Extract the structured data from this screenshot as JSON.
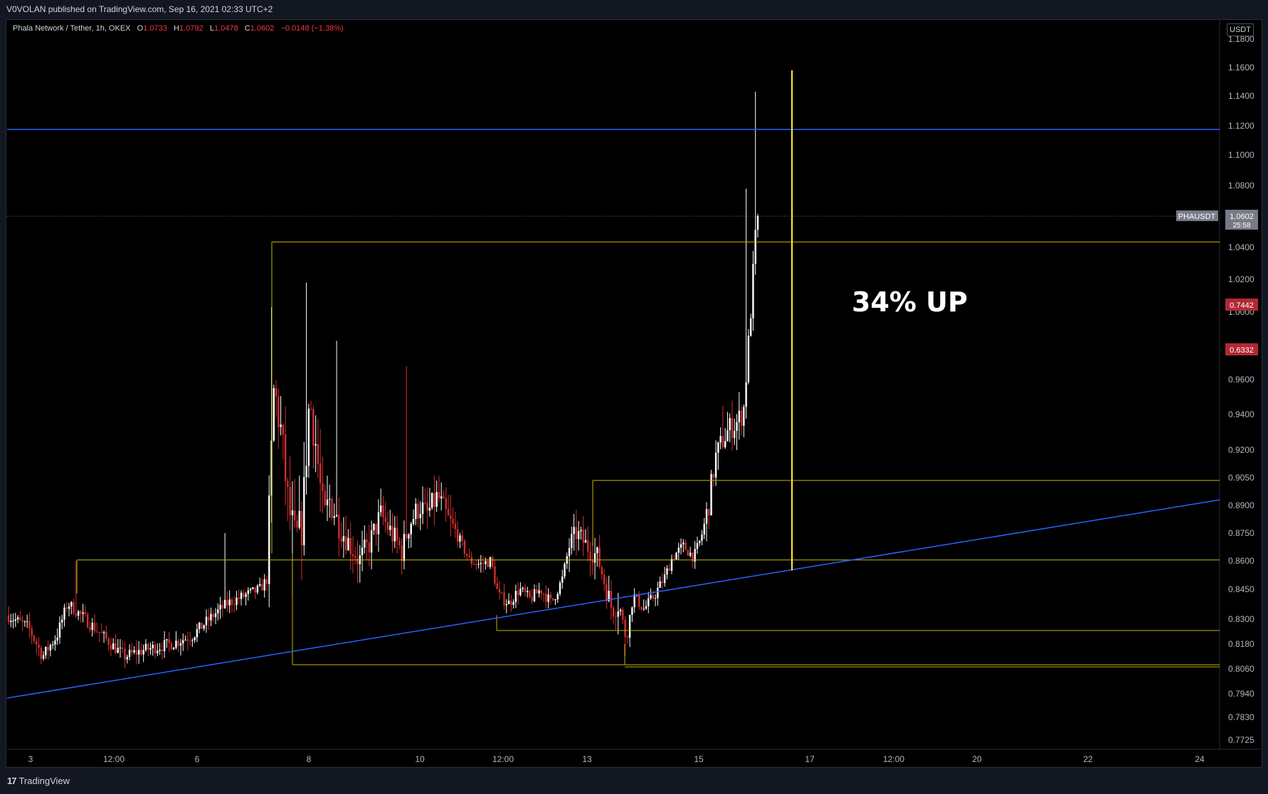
{
  "header": {
    "published_text": "V0VOLAN published on TradingView.com, Sep 16, 2021 02:33 UTC+2"
  },
  "legend": {
    "symbol_text": "Phala Network / Tether, 1h, OKEX",
    "o_label": "O",
    "o_value": "1.0733",
    "h_label": "H",
    "h_value": "1.0792",
    "l_label": "L",
    "l_value": "1.0478",
    "c_label": "C",
    "c_value": "1.0602",
    "change": "−0.0148 (−1.38%)"
  },
  "axis_unit": "USDT",
  "footer": {
    "brand": "TradingView"
  },
  "annotation_text": "34% UP",
  "price_tags": [
    {
      "label": "PHAUSDT",
      "value": "1.0602",
      "sub": "25:58",
      "bg": "#787b86"
    },
    {
      "label": "",
      "value": "0.7442",
      "sub": "",
      "bg": "#b22833"
    },
    {
      "label": "",
      "value": "0.6332",
      "sub": "",
      "bg": "#b22833"
    }
  ],
  "colors": {
    "up": "#ffffff",
    "down": "#d32f2f",
    "level": "#c8b400",
    "trend": "#2962ff",
    "vertical": "#ffeb3b",
    "background": "#000000"
  },
  "chart_data": {
    "type": "candlestick",
    "symbol": "PHAUSDT",
    "timeframe": "1h",
    "y_axis": {
      "ticks": [
        "1.1800",
        "1.1600",
        "1.1400",
        "1.1200",
        "1.1000",
        "1.0800",
        "1.0400",
        "1.0200",
        "1.0000",
        "0.9600",
        "0.9400",
        "0.9200",
        "0.9050",
        "0.8900",
        "0.8750",
        "0.8600",
        "0.8450",
        "0.8300",
        "0.8180",
        "0.8060",
        "0.7940",
        "0.7830",
        "0.7725"
      ],
      "ylim": [
        0.768,
        1.185
      ]
    },
    "x_axis": {
      "ticks": [
        "3",
        "12:00",
        "6",
        "8",
        "10",
        "12:00",
        "13",
        "15",
        "17",
        "12:00",
        "20",
        "22",
        "24"
      ]
    },
    "horizontal_levels": [
      {
        "name": "resistance-blue",
        "price": 1.1175,
        "color": "#2962ff"
      },
      {
        "name": "top-box",
        "price": 1.0435,
        "color": "#c8b400"
      },
      {
        "name": "mid-box",
        "price": 0.9035,
        "color": "#c8b400"
      },
      {
        "name": "base-level",
        "price": 0.8605,
        "color": "#c8b400"
      },
      {
        "name": "low-box",
        "price": 0.8245,
        "color": "#c8b400"
      },
      {
        "name": "bottom-1",
        "price": 0.808,
        "color": "#c8b400"
      },
      {
        "name": "bottom-2",
        "price": 0.807,
        "color": "#c8b400"
      }
    ],
    "trendline": {
      "from": {
        "date": "Sep 2",
        "price": 0.792
      },
      "to": {
        "date": "Sep 24",
        "price": 0.893
      }
    },
    "vertical_marker": {
      "date": "Sep 16",
      "from_price": 0.855,
      "to_price": 1.158
    },
    "last_price": 1.0602,
    "candles": []
  }
}
